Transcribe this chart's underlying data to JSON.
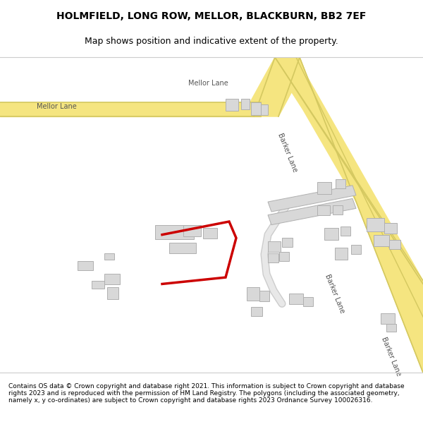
{
  "title_line1": "HOLMFIELD, LONG ROW, MELLOR, BLACKBURN, BB2 7EF",
  "title_line2": "Map shows position and indicative extent of the property.",
  "footer_text": "Contains OS data © Crown copyright and database right 2021. This information is subject to Crown copyright and database rights 2023 and is reproduced with the permission of HM Land Registry. The polygons (including the associated geometry, namely x, y co-ordinates) are subject to Crown copyright and database rights 2023 Ordnance Survey 100026316.",
  "bg_color": "#f8f8f8",
  "map_bg": "#f5f5f0",
  "road_color_main": "#f5e580",
  "road_color_minor": "#ffffff",
  "road_outline": "#d4c860",
  "building_color": "#d8d8d8",
  "building_edge": "#b0b0b0",
  "plot_color": "#ff0000",
  "plot_fill": "none"
}
